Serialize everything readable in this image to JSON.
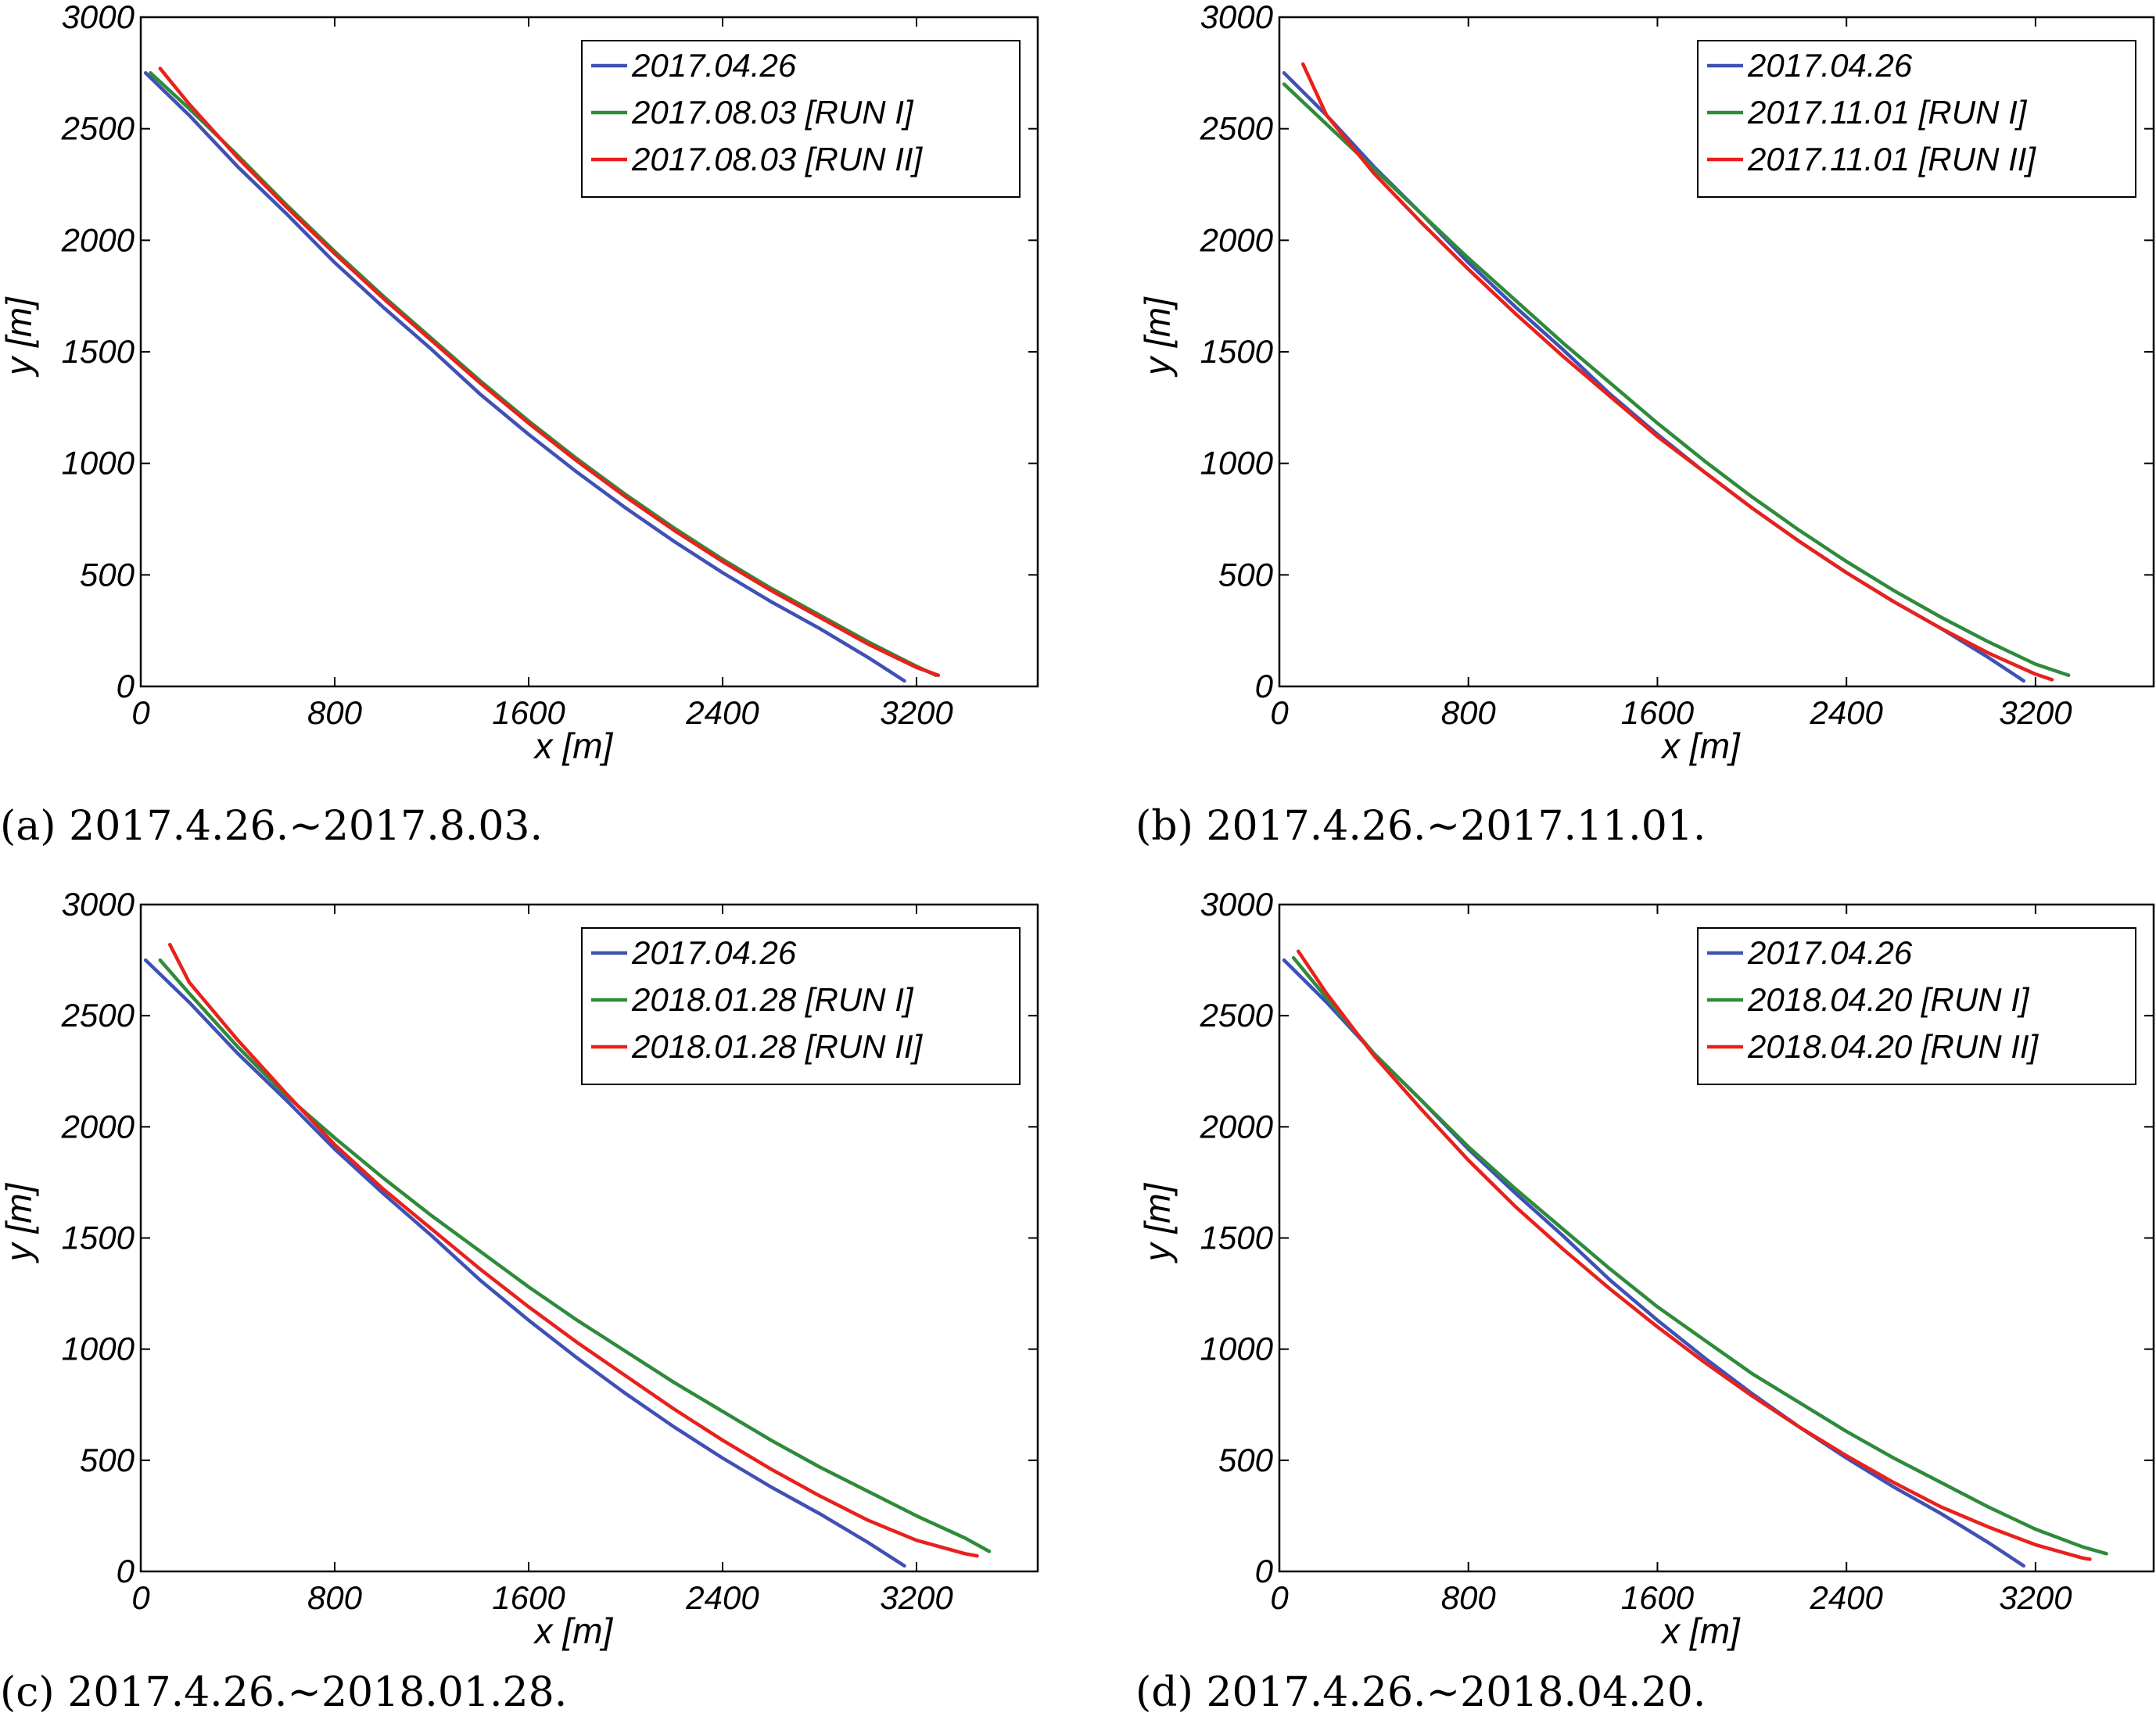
{
  "chart_data": [
    {
      "type": "line",
      "panel": "a",
      "caption": "(a) 2017.4.26.~2017.8.03.",
      "xlabel": "x [m]",
      "ylabel": "y [m]",
      "xlim": [
        0,
        3700
      ],
      "ylim": [
        0,
        3000
      ],
      "xticks": [
        0,
        800,
        1600,
        2400,
        3200
      ],
      "yticks": [
        0,
        500,
        1000,
        1500,
        2000,
        2500,
        3000
      ],
      "xtick_labels": [
        "0",
        "800",
        "1600",
        "2400",
        "3200"
      ],
      "ytick_labels": [
        "0",
        "500",
        "1000",
        "1500",
        "2000",
        "2500",
        "3000"
      ],
      "legend_position": "top-right",
      "series": [
        {
          "name": "2017.04.26",
          "color": "#3f51b5",
          "x": [
            20,
            200,
            400,
            600,
            800,
            1000,
            1200,
            1400,
            1600,
            1800,
            2000,
            2200,
            2400,
            2600,
            2800,
            3000,
            3150
          ],
          "y": [
            2750,
            2560,
            2330,
            2120,
            1900,
            1700,
            1510,
            1310,
            1130,
            960,
            800,
            650,
            510,
            380,
            260,
            130,
            25
          ]
        },
        {
          "name": "2017.08.03 [RUN  I]",
          "color": "#2e8b3a",
          "x": [
            40,
            200,
            400,
            600,
            800,
            1000,
            1200,
            1400,
            1600,
            1800,
            2000,
            2200,
            2400,
            2600,
            2800,
            3000,
            3200,
            3280
          ],
          "y": [
            2750,
            2590,
            2380,
            2160,
            1950,
            1750,
            1560,
            1370,
            1190,
            1020,
            860,
            710,
            570,
            440,
            320,
            200,
            90,
            50
          ]
        },
        {
          "name": "2017.08.03 [RUN II]",
          "color": "#e8211d",
          "x": [
            80,
            200,
            400,
            600,
            800,
            1000,
            1200,
            1400,
            1600,
            1800,
            2000,
            2200,
            2400,
            2600,
            2800,
            3000,
            3200,
            3290
          ],
          "y": [
            2770,
            2610,
            2370,
            2150,
            1940,
            1740,
            1550,
            1360,
            1180,
            1010,
            850,
            700,
            560,
            430,
            310,
            190,
            85,
            50
          ]
        }
      ],
      "legend": [
        "2017.04.26",
        "2017.08.03 [RUN  I]",
        "2017.08.03 [RUN II]"
      ]
    },
    {
      "type": "line",
      "panel": "b",
      "caption": "(b) 2017.4.26.~2017.11.01.",
      "xlabel": "x [m]",
      "ylabel": "y [m]",
      "xlim": [
        0,
        3700
      ],
      "ylim": [
        0,
        3000
      ],
      "xticks": [
        0,
        800,
        1600,
        2400,
        3200
      ],
      "yticks": [
        0,
        500,
        1000,
        1500,
        2000,
        2500,
        3000
      ],
      "xtick_labels": [
        "0",
        "800",
        "1600",
        "2400",
        "3200"
      ],
      "ytick_labels": [
        "0",
        "500",
        "1000",
        "1500",
        "2000",
        "2500",
        "3000"
      ],
      "legend_position": "top-right",
      "series": [
        {
          "name": "2017.04.26",
          "color": "#3f51b5",
          "x": [
            20,
            200,
            400,
            600,
            800,
            1000,
            1200,
            1400,
            1600,
            1800,
            2000,
            2200,
            2400,
            2600,
            2800,
            3000,
            3150
          ],
          "y": [
            2750,
            2560,
            2330,
            2120,
            1900,
            1700,
            1510,
            1310,
            1130,
            960,
            800,
            650,
            510,
            380,
            260,
            130,
            25
          ]
        },
        {
          "name": "2017.11.01 [RUN  I]",
          "color": "#2e8b3a",
          "x": [
            20,
            200,
            400,
            600,
            800,
            1000,
            1200,
            1400,
            1600,
            1800,
            2000,
            2200,
            2400,
            2600,
            2800,
            3000,
            3200,
            3340
          ],
          "y": [
            2700,
            2520,
            2320,
            2120,
            1920,
            1730,
            1540,
            1360,
            1180,
            1010,
            850,
            700,
            560,
            430,
            310,
            200,
            100,
            50
          ]
        },
        {
          "name": "2017.11.01 [RUN II]",
          "color": "#e8211d",
          "x": [
            100,
            200,
            400,
            600,
            800,
            1000,
            1200,
            1400,
            1600,
            1800,
            2000,
            2200,
            2400,
            2600,
            2800,
            3000,
            3200,
            3270
          ],
          "y": [
            2790,
            2560,
            2300,
            2080,
            1870,
            1670,
            1480,
            1300,
            1120,
            960,
            800,
            650,
            510,
            380,
            260,
            150,
            55,
            30
          ]
        }
      ],
      "legend": [
        "2017.04.26",
        "2017.11.01 [RUN  I]",
        "2017.11.01 [RUN II]"
      ]
    },
    {
      "type": "line",
      "panel": "c",
      "caption": "(c) 2017.4.26.~2018.01.28.",
      "xlabel": "x [m]",
      "ylabel": "y [m]",
      "xlim": [
        0,
        3700
      ],
      "ylim": [
        0,
        3000
      ],
      "xticks": [
        0,
        800,
        1600,
        2400,
        3200
      ],
      "yticks": [
        0,
        500,
        1000,
        1500,
        2000,
        2500,
        3000
      ],
      "xtick_labels": [
        "0",
        "800",
        "1600",
        "2400",
        "3200"
      ],
      "ytick_labels": [
        "0",
        "500",
        "1000",
        "1500",
        "2000",
        "2500",
        "3000"
      ],
      "legend_position": "top-right",
      "series": [
        {
          "name": "2017.04.26",
          "color": "#3f51b5",
          "x": [
            20,
            200,
            400,
            600,
            800,
            1000,
            1200,
            1400,
            1600,
            1800,
            2000,
            2200,
            2400,
            2600,
            2800,
            3000,
            3150
          ],
          "y": [
            2750,
            2560,
            2330,
            2120,
            1900,
            1700,
            1510,
            1310,
            1130,
            960,
            800,
            650,
            510,
            380,
            260,
            130,
            25
          ]
        },
        {
          "name": "2018.01.28 [RUN  I]",
          "color": "#2e8b3a",
          "x": [
            80,
            200,
            400,
            600,
            800,
            1000,
            1200,
            1400,
            1600,
            1800,
            2000,
            2200,
            2400,
            2600,
            2800,
            3000,
            3200,
            3400,
            3500
          ],
          "y": [
            2750,
            2600,
            2360,
            2140,
            1950,
            1770,
            1600,
            1440,
            1280,
            1130,
            990,
            850,
            720,
            590,
            470,
            360,
            250,
            150,
            90
          ]
        },
        {
          "name": "2018.01.28 [RUN II]",
          "color": "#e8211d",
          "x": [
            120,
            200,
            400,
            600,
            800,
            1000,
            1200,
            1400,
            1600,
            1800,
            2000,
            2200,
            2400,
            2600,
            2800,
            3000,
            3200,
            3400,
            3450
          ],
          "y": [
            2820,
            2650,
            2390,
            2150,
            1920,
            1720,
            1540,
            1360,
            1190,
            1030,
            880,
            730,
            590,
            460,
            340,
            230,
            140,
            80,
            70
          ]
        }
      ],
      "legend": [
        "2017.04.26",
        "2018.01.28 [RUN  I]",
        "2018.01.28 [RUN II]"
      ]
    },
    {
      "type": "line",
      "panel": "d",
      "caption": "(d) 2017.4.26.~2018.04.20.",
      "xlabel": "x [m]",
      "ylabel": "y [m]",
      "xlim": [
        0,
        3700
      ],
      "ylim": [
        0,
        3000
      ],
      "xticks": [
        0,
        800,
        1600,
        2400,
        3200
      ],
      "yticks": [
        0,
        500,
        1000,
        1500,
        2000,
        2500,
        3000
      ],
      "xtick_labels": [
        "0",
        "800",
        "1600",
        "2400",
        "3200"
      ],
      "ytick_labels": [
        "0",
        "500",
        "1000",
        "1500",
        "2000",
        "2500",
        "3000"
      ],
      "legend_position": "top-right",
      "series": [
        {
          "name": "2017.04.26",
          "color": "#3f51b5",
          "x": [
            20,
            200,
            400,
            600,
            800,
            1000,
            1200,
            1400,
            1600,
            1800,
            2000,
            2200,
            2400,
            2600,
            2800,
            3000,
            3150
          ],
          "y": [
            2750,
            2560,
            2330,
            2120,
            1900,
            1700,
            1510,
            1310,
            1130,
            960,
            800,
            650,
            510,
            380,
            260,
            130,
            25
          ]
        },
        {
          "name": "2018.04.20 [RUN  I]",
          "color": "#2e8b3a",
          "x": [
            60,
            200,
            400,
            600,
            800,
            1000,
            1200,
            1400,
            1600,
            1800,
            2000,
            2200,
            2400,
            2600,
            2800,
            3000,
            3200,
            3400,
            3500
          ],
          "y": [
            2760,
            2580,
            2330,
            2120,
            1910,
            1720,
            1540,
            1360,
            1190,
            1040,
            890,
            760,
            630,
            510,
            400,
            290,
            190,
            110,
            80
          ]
        },
        {
          "name": "2018.04.20 [RUN II]",
          "color": "#e8211d",
          "x": [
            80,
            200,
            400,
            600,
            800,
            1000,
            1200,
            1400,
            1600,
            1800,
            2000,
            2200,
            2400,
            2600,
            2800,
            3000,
            3200,
            3400,
            3430
          ],
          "y": [
            2790,
            2600,
            2320,
            2080,
            1850,
            1640,
            1450,
            1270,
            1100,
            940,
            790,
            650,
            520,
            400,
            290,
            200,
            120,
            60,
            55
          ]
        }
      ],
      "legend": [
        "2017.04.26",
        "2018.04.20 [RUN  I]",
        "2018.04.20 [RUN II]"
      ]
    }
  ]
}
